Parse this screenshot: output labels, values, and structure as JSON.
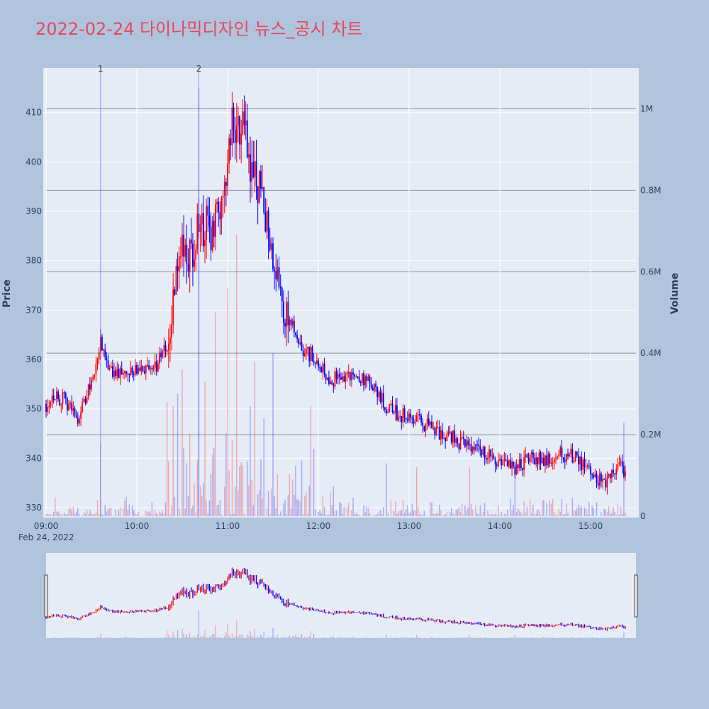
{
  "title": "2022-02-24 다이나믹디자인 뉴스_공시 차트",
  "chart_data": {
    "type": "candlestick",
    "date_label": "Feb 24, 2022",
    "x_range": [
      "09:00",
      "15:30"
    ],
    "x_ticks": [
      "09:00",
      "10:00",
      "11:00",
      "12:00",
      "13:00",
      "14:00",
      "15:00"
    ],
    "y_axis": {
      "label": "Price",
      "range": [
        328,
        419
      ],
      "ticks": [
        330,
        340,
        350,
        360,
        370,
        380,
        390,
        400,
        410
      ]
    },
    "y2_axis": {
      "label": "Volume",
      "range": [
        0,
        1100000
      ],
      "ticks": [
        0,
        200000,
        400000,
        600000,
        800000,
        1000000
      ],
      "tick_labels": [
        "0",
        "0.2M",
        "0.4M",
        "0.6M",
        "0.8M",
        "1M"
      ]
    },
    "news_markers": [
      {
        "label": "1",
        "time": "09:36"
      },
      {
        "label": "2",
        "time": "10:41"
      }
    ],
    "price_path": [
      [
        "09:00",
        351
      ],
      [
        "09:05",
        353
      ],
      [
        "09:10",
        352
      ],
      [
        "09:15",
        351
      ],
      [
        "09:20",
        348
      ],
      [
        "09:25",
        351
      ],
      [
        "09:30",
        356
      ],
      [
        "09:33",
        358
      ],
      [
        "09:36",
        364
      ],
      [
        "09:40",
        360
      ],
      [
        "09:45",
        357
      ],
      [
        "09:50",
        357
      ],
      [
        "10:00",
        358
      ],
      [
        "10:10",
        358
      ],
      [
        "10:15",
        360
      ],
      [
        "10:20",
        363
      ],
      [
        "10:24",
        370
      ],
      [
        "10:27",
        380
      ],
      [
        "10:30",
        385
      ],
      [
        "10:35",
        380
      ],
      [
        "10:40",
        385
      ],
      [
        "10:45",
        388
      ],
      [
        "10:50",
        384
      ],
      [
        "10:55",
        392
      ],
      [
        "11:00",
        400
      ],
      [
        "11:03",
        408
      ],
      [
        "11:06",
        405
      ],
      [
        "11:10",
        408
      ],
      [
        "11:15",
        400
      ],
      [
        "11:20",
        396
      ],
      [
        "11:25",
        390
      ],
      [
        "11:30",
        380
      ],
      [
        "11:35",
        372
      ],
      [
        "11:40",
        368
      ],
      [
        "11:45",
        366
      ],
      [
        "11:50",
        362
      ],
      [
        "12:00",
        360
      ],
      [
        "12:05",
        357
      ],
      [
        "12:10",
        356
      ],
      [
        "12:20",
        357
      ],
      [
        "12:30",
        356
      ],
      [
        "12:40",
        353
      ],
      [
        "12:45",
        350
      ],
      [
        "13:00",
        348
      ],
      [
        "13:10",
        347
      ],
      [
        "13:20",
        345
      ],
      [
        "13:30",
        344
      ],
      [
        "13:40",
        342
      ],
      [
        "13:50",
        341
      ],
      [
        "14:00",
        339
      ],
      [
        "14:10",
        338
      ],
      [
        "14:20",
        340
      ],
      [
        "14:30",
        340
      ],
      [
        "14:40",
        341
      ],
      [
        "14:50",
        340
      ],
      [
        "15:00",
        337
      ],
      [
        "15:05",
        336
      ],
      [
        "15:10",
        335
      ],
      [
        "15:15",
        338
      ],
      [
        "15:20",
        339
      ],
      [
        "15:23",
        337
      ]
    ],
    "volume_spikes": [
      [
        "09:36",
        180000
      ],
      [
        "10:20",
        280000
      ],
      [
        "10:24",
        270000
      ],
      [
        "10:27",
        300000
      ],
      [
        "10:30",
        360000
      ],
      [
        "10:41",
        1050000
      ],
      [
        "10:45",
        330000
      ],
      [
        "10:52",
        500000
      ],
      [
        "11:00",
        560000
      ],
      [
        "11:06",
        690000
      ],
      [
        "11:15",
        270000
      ],
      [
        "11:18",
        380000
      ],
      [
        "11:24",
        240000
      ],
      [
        "11:30",
        400000
      ],
      [
        "11:55",
        270000
      ],
      [
        "12:45",
        130000
      ],
      [
        "13:05",
        120000
      ],
      [
        "13:40",
        120000
      ],
      [
        "14:10",
        110000
      ],
      [
        "15:22",
        230000
      ]
    ],
    "grid": true,
    "rangeslider": true,
    "increasing_color": "#ff0000",
    "decreasing_color": "#0000ff"
  }
}
